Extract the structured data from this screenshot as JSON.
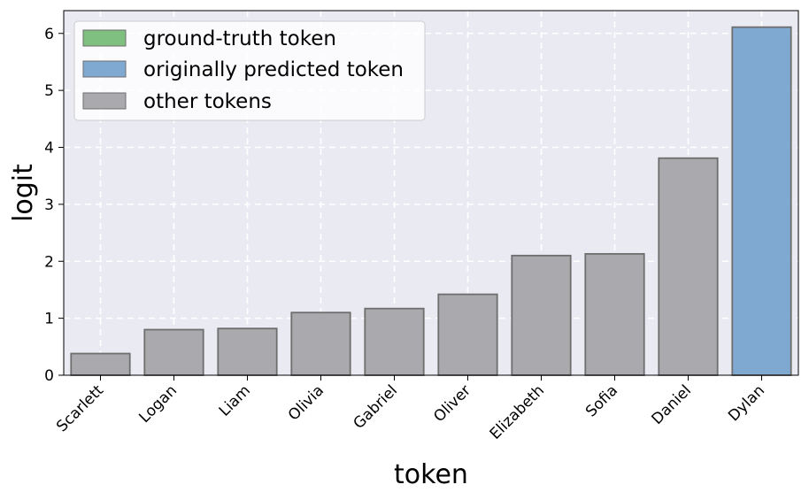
{
  "chart_data": {
    "type": "bar",
    "xlabel": "token",
    "ylabel": "logit",
    "categories": [
      "Scarlett",
      "Logan",
      "Liam",
      "Olivia",
      "Gabriel",
      "Oliver",
      "Elizabeth",
      "Sofia",
      "Daniel",
      "Dylan"
    ],
    "values": [
      0.38,
      0.8,
      0.82,
      1.1,
      1.17,
      1.42,
      2.1,
      2.13,
      3.81,
      6.11
    ],
    "bar_groups": [
      "other",
      "other",
      "other",
      "other",
      "other",
      "other",
      "other",
      "other",
      "other",
      "predicted"
    ],
    "ylim": [
      0,
      6.4
    ],
    "yticks": [
      "0",
      "1",
      "2",
      "3",
      "4",
      "5",
      "6"
    ],
    "grid": true,
    "legend_position": "top-left",
    "legend": [
      {
        "key": "ground_truth",
        "label": "ground-truth token",
        "color": "#7fbf7f"
      },
      {
        "key": "predicted",
        "label": "originally predicted token",
        "color": "#80a9d1"
      },
      {
        "key": "other",
        "label": "other tokens",
        "color": "#aaaaae"
      }
    ],
    "colors": {
      "other": "#aaaaae",
      "predicted": "#80a9d1",
      "ground_truth": "#7fbf7f",
      "bar_edge": "#6e6e6e",
      "plot_background": "#eaeaf2",
      "grid": "#ffffff"
    }
  }
}
